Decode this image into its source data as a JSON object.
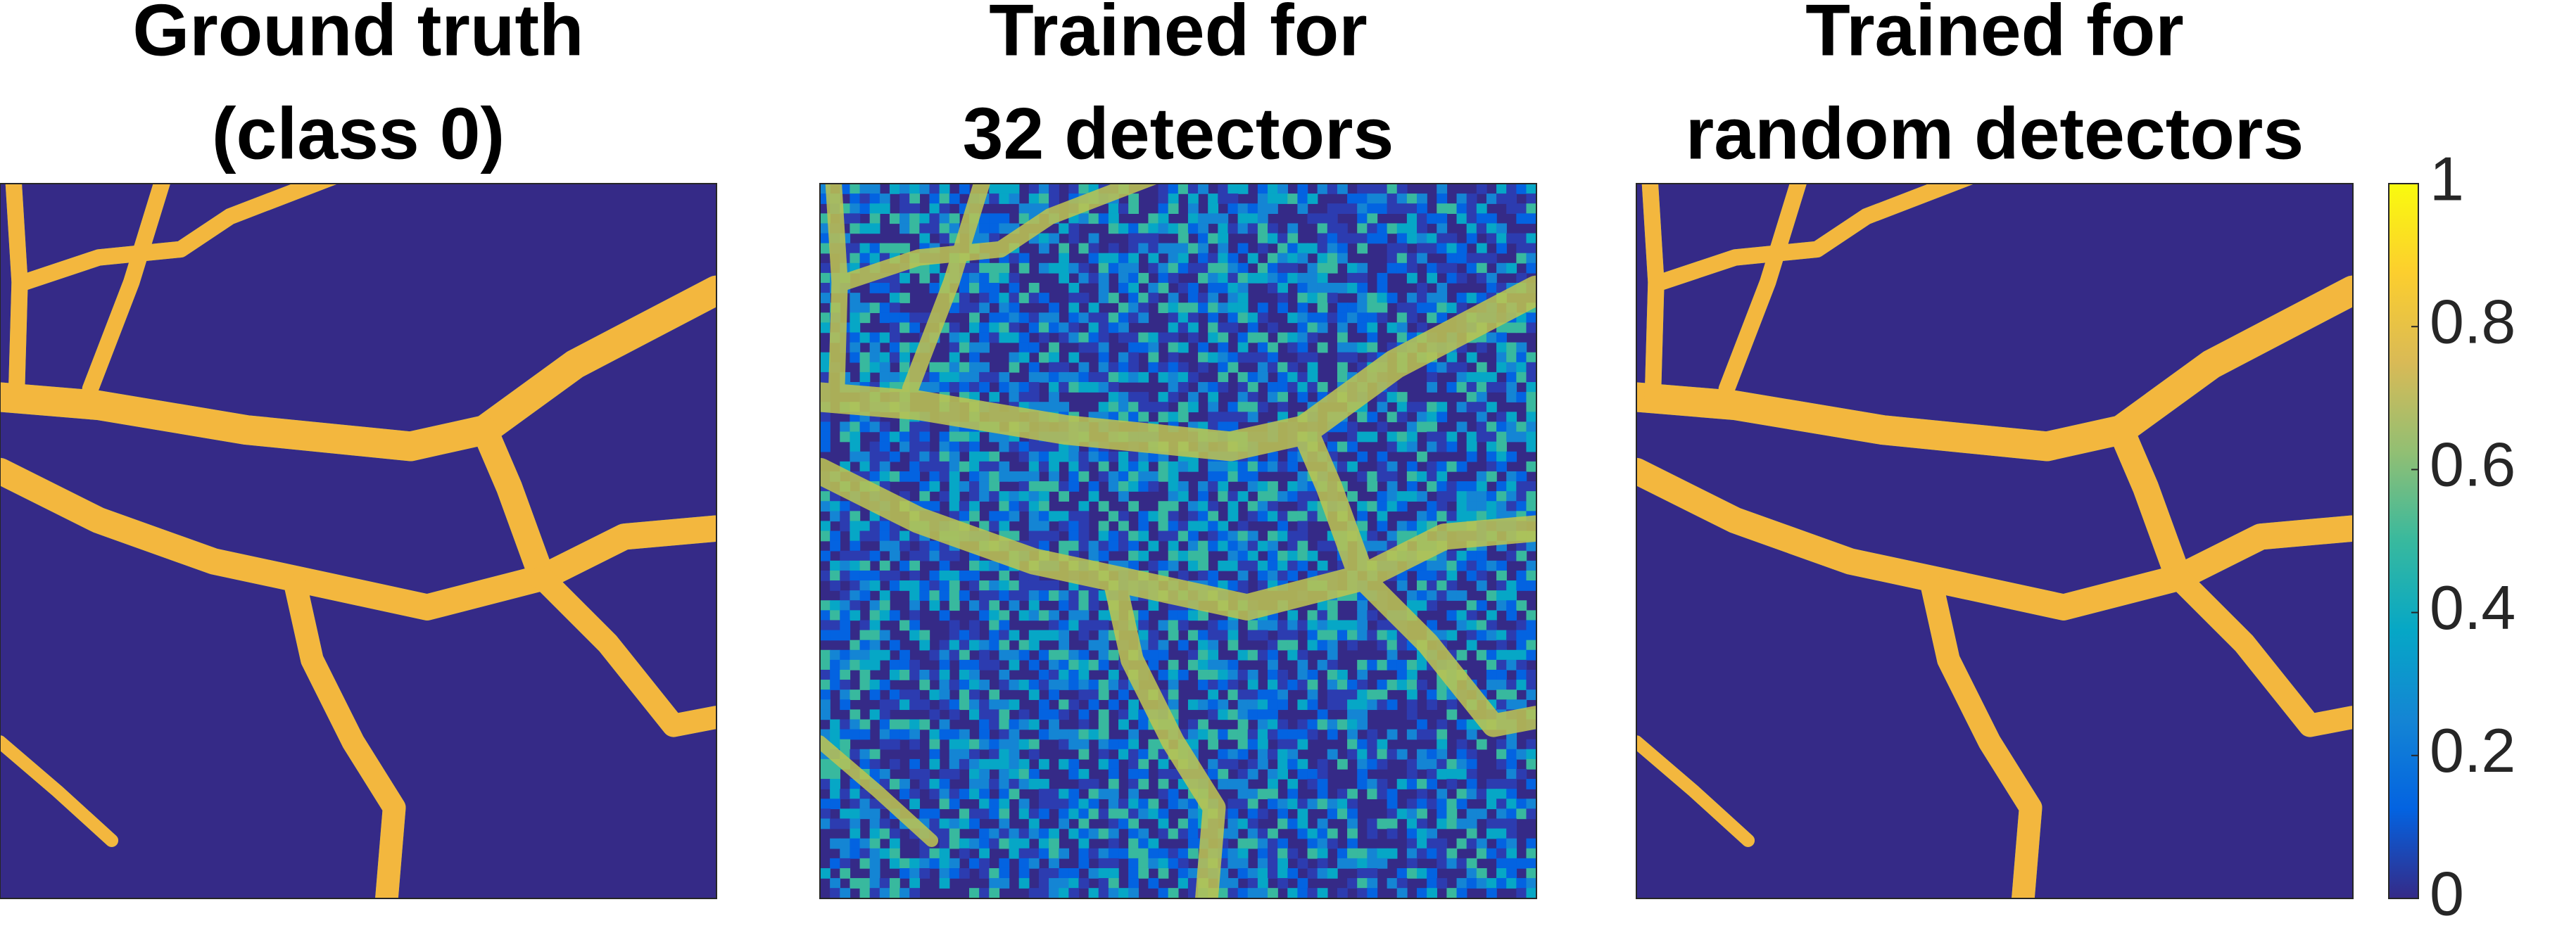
{
  "chart_data": {
    "type": "image-grid",
    "panels": [
      {
        "title_lines": [
          "Ground truth",
          "(class 0)"
        ],
        "style": "clean"
      },
      {
        "title_lines": [
          "Trained for",
          "32 detectors"
        ],
        "style": "noisy"
      },
      {
        "title_lines": [
          "Trained for",
          "random detectors"
        ],
        "style": "clean"
      }
    ],
    "colorbar": {
      "clim": [
        0,
        1
      ],
      "ticks": [
        0,
        0.2,
        0.4,
        0.6,
        0.8,
        1
      ]
    }
  }
}
